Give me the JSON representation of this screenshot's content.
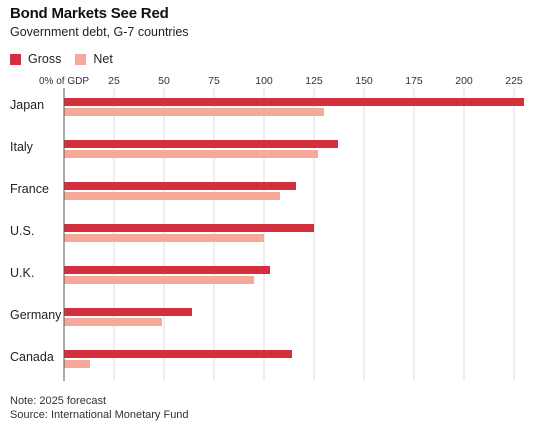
{
  "title": "Bond Markets See Red",
  "subtitle": "Government debt, G-7 countries",
  "note": "Note: 2025 forecast",
  "source": "Source: International Monetary Fund",
  "colors": {
    "gross": "#d32f3c",
    "net": "#f7a999"
  },
  "chart_data": {
    "type": "bar",
    "orientation": "horizontal",
    "categories": [
      "Japan",
      "Italy",
      "France",
      "U.S.",
      "U.K.",
      "Germany",
      "Canada"
    ],
    "series": [
      {
        "name": "Gross",
        "values": [
          230,
          137,
          116,
          125,
          103,
          64,
          114
        ]
      },
      {
        "name": "Net",
        "values": [
          130,
          127,
          108,
          100,
          95,
          49,
          13
        ]
      }
    ],
    "x_ticks": [
      {
        "value": 0,
        "label": "0% of GDP"
      },
      {
        "value": 25,
        "label": "25"
      },
      {
        "value": 50,
        "label": "50"
      },
      {
        "value": 75,
        "label": "75"
      },
      {
        "value": 100,
        "label": "100"
      },
      {
        "value": 125,
        "label": "125"
      },
      {
        "value": 150,
        "label": "150"
      },
      {
        "value": 175,
        "label": "175"
      },
      {
        "value": 200,
        "label": "200"
      },
      {
        "value": 225,
        "label": "225"
      }
    ],
    "xlim": [
      0,
      230
    ],
    "grid": true,
    "legend": "top-left"
  }
}
